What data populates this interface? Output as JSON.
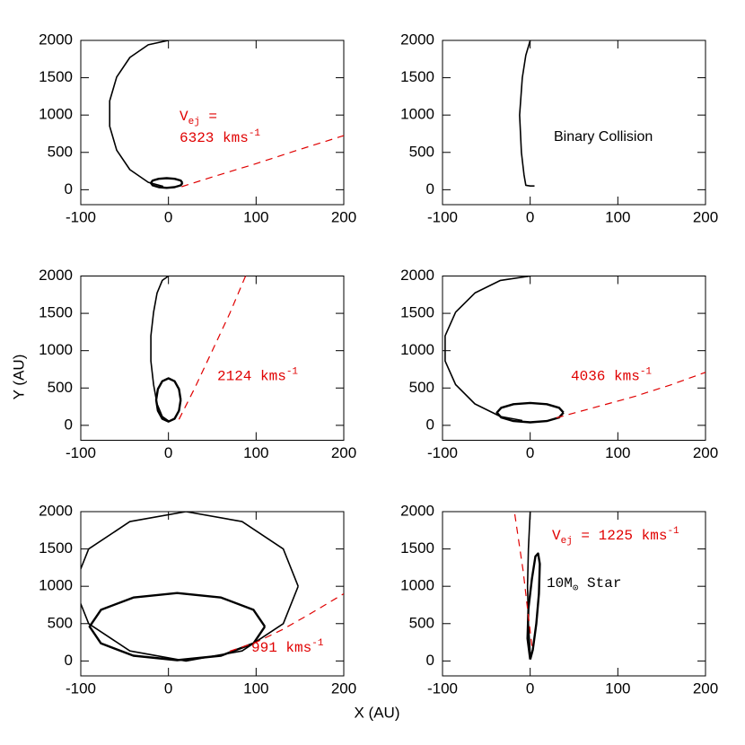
{
  "xlabel": "X (AU)",
  "ylabel": "Y (AU)",
  "chart_data": [
    {
      "type": "line",
      "xlim": [
        -100,
        200
      ],
      "ylim": [
        -200,
        2000
      ],
      "xticks": [
        -100,
        0,
        100,
        200
      ],
      "yticks": [
        0,
        500,
        1000,
        1500,
        2000
      ],
      "series": [
        {
          "color": "#000000",
          "linewidth": 1.6,
          "dash": false,
          "x": [
            0,
            -23,
            -44,
            -59,
            -67,
            -67,
            -59,
            -44,
            -23,
            -6
          ],
          "values": [
            2000,
            1941,
            1771,
            1510,
            1190,
            850,
            530,
            269,
            99,
            44
          ]
        },
        {
          "color": "#000000",
          "linewidth": 2.4,
          "dash": false,
          "x": [
            16,
            14,
            7,
            -2,
            -11,
            -18,
            -20,
            -18,
            -11,
            -2,
            7,
            14,
            16
          ],
          "values": [
            90,
            123,
            146,
            155,
            146,
            123,
            90,
            58,
            34,
            25,
            34,
            58,
            90
          ]
        },
        {
          "color": "#e00000",
          "linewidth": 1.2,
          "dash": true,
          "x": [
            15,
            50,
            100,
            150,
            200
          ],
          "values": [
            40,
            170,
            350,
            540,
            725
          ]
        }
      ],
      "annotations": [
        {
          "color": "#e00000",
          "lines": [
            [
              {
                "text": "V"
              },
              {
                "text": "ej",
                "sub": true
              },
              {
                "text": " ="
              }
            ],
            [
              {
                "text": "6323 kms"
              },
              {
                "text": "-1",
                "sup": true
              }
            ]
          ]
        }
      ]
    },
    {
      "type": "line",
      "xlim": [
        -100,
        200
      ],
      "ylim": [
        -200,
        2000
      ],
      "xticks": [
        -100,
        0,
        100,
        200
      ],
      "yticks": [
        0,
        500,
        1000,
        1500,
        2000
      ],
      "series": [
        {
          "color": "#000000",
          "linewidth": 1.6,
          "dash": false,
          "x": [
            0,
            -5,
            -9,
            -12,
            -10,
            -7,
            -5,
            0,
            5
          ],
          "values": [
            2000,
            1800,
            1500,
            1000,
            500,
            200,
            60,
            50,
            50
          ]
        }
      ],
      "annotations": [
        {
          "color": "#000000",
          "sans": true,
          "lines": [
            [
              {
                "text": "Binary Collision"
              }
            ]
          ]
        }
      ]
    },
    {
      "type": "line",
      "xlim": [
        -100,
        200
      ],
      "ylim": [
        -200,
        2000
      ],
      "xticks": [
        -100,
        0,
        100,
        200
      ],
      "yticks": [
        0,
        500,
        1000,
        1500,
        2000
      ],
      "series": [
        {
          "color": "#000000",
          "linewidth": 1.6,
          "dash": false,
          "x": [
            0,
            -7,
            -13,
            -17,
            -20,
            -20,
            -17,
            -13,
            -7,
            0
          ],
          "values": [
            2000,
            1941,
            1773,
            1515,
            1198,
            862,
            545,
            287,
            118,
            60
          ]
        },
        {
          "color": "#000000",
          "linewidth": 2.4,
          "dash": false,
          "x": [
            14,
            12,
            7,
            0,
            -7,
            -12,
            -14,
            -12,
            -7,
            0,
            7,
            12,
            14
          ],
          "values": [
            340,
            485,
            591,
            630,
            591,
            485,
            340,
            195,
            89,
            50,
            89,
            195,
            340
          ]
        },
        {
          "color": "#e00000",
          "linewidth": 1.2,
          "dash": true,
          "x": [
            12,
            30,
            50,
            70,
            88
          ],
          "values": [
            80,
            500,
            1000,
            1500,
            2000
          ]
        }
      ],
      "annotations": [
        {
          "color": "#e00000",
          "lines": [
            [
              {
                "text": "2124 kms"
              },
              {
                "text": "-1",
                "sup": true
              }
            ]
          ]
        }
      ]
    },
    {
      "type": "line",
      "xlim": [
        -100,
        200
      ],
      "ylim": [
        -200,
        2000
      ],
      "xticks": [
        -100,
        0,
        100,
        200
      ],
      "yticks": [
        0,
        500,
        1000,
        1500,
        2000
      ],
      "series": [
        {
          "color": "#000000",
          "linewidth": 1.6,
          "dash": false,
          "x": [
            0,
            -34,
            -63,
            -85,
            -97,
            -97,
            -85,
            -63,
            -34,
            -9
          ],
          "values": [
            2000,
            1941,
            1773,
            1515,
            1198,
            862,
            545,
            287,
            118,
            64
          ]
        },
        {
          "color": "#000000",
          "linewidth": 2.4,
          "dash": false,
          "x": [
            38,
            33,
            19,
            0,
            -19,
            -33,
            -38,
            -33,
            -19,
            0,
            19,
            33,
            38
          ],
          "values": [
            170,
            235,
            283,
            300,
            283,
            235,
            170,
            105,
            57,
            40,
            57,
            105,
            170
          ]
        },
        {
          "color": "#e00000",
          "linewidth": 1.2,
          "dash": true,
          "x": [
            30,
            80,
            120,
            160,
            200
          ],
          "values": [
            100,
            260,
            390,
            540,
            710
          ]
        }
      ],
      "annotations": [
        {
          "color": "#e00000",
          "lines": [
            [
              {
                "text": "4036 kms"
              },
              {
                "text": "-1",
                "sup": true
              }
            ]
          ]
        }
      ]
    },
    {
      "type": "line",
      "xlim": [
        -100,
        200
      ],
      "ylim": [
        -200,
        2000
      ],
      "xticks": [
        -100,
        0,
        100,
        200
      ],
      "yticks": [
        0,
        500,
        1000,
        1500,
        2000
      ],
      "series": [
        {
          "color": "#000000",
          "linewidth": 1.6,
          "dash": false,
          "x": [
            148,
            131,
            84,
            20,
            -44,
            -91,
            -108,
            -91,
            -44,
            20,
            84,
            131,
            148
          ],
          "values": [
            1000,
            1500,
            1866,
            2000,
            1866,
            1500,
            1000,
            500,
            134,
            0,
            134,
            500,
            1000
          ]
        },
        {
          "color": "#000000",
          "linewidth": 2.4,
          "dash": false,
          "x": [
            110,
            97,
            60,
            10,
            -40,
            -77,
            -90,
            -77,
            -40,
            10,
            60,
            97,
            110
          ],
          "values": [
            460,
            685,
            850,
            910,
            850,
            685,
            460,
            235,
            70,
            10,
            70,
            235,
            460
          ]
        },
        {
          "color": "#e00000",
          "linewidth": 1.2,
          "dash": true,
          "x": [
            70,
            100,
            130,
            160,
            200
          ],
          "values": [
            130,
            250,
            420,
            620,
            900
          ]
        }
      ],
      "annotations": [
        {
          "color": "#e00000",
          "lines": [
            [
              {
                "text": "991 kms"
              },
              {
                "text": "-1",
                "sup": true
              }
            ]
          ]
        }
      ]
    },
    {
      "type": "line",
      "xlim": [
        -100,
        200
      ],
      "ylim": [
        -200,
        2000
      ],
      "xticks": [
        -100,
        0,
        100,
        200
      ],
      "yticks": [
        0,
        500,
        1000,
        1500,
        2000
      ],
      "series": [
        {
          "color": "#000000",
          "linewidth": 1.6,
          "dash": false,
          "x": [
            0,
            -2,
            -3,
            -2,
            0
          ],
          "values": [
            2000,
            1500,
            1000,
            500,
            100
          ]
        },
        {
          "color": "#000000",
          "linewidth": 2.4,
          "dash": false,
          "x": [
            0,
            -3,
            -2,
            2,
            6,
            9,
            11,
            10,
            7,
            3,
            0
          ],
          "values": [
            20,
            300,
            700,
            1100,
            1400,
            1440,
            1300,
            900,
            500,
            150,
            20
          ]
        },
        {
          "color": "#e00000",
          "linewidth": 1.2,
          "dash": true,
          "x": [
            2,
            -3,
            -8,
            -13,
            -18
          ],
          "values": [
            200,
            700,
            1200,
            1600,
            2000
          ]
        }
      ],
      "annotations": [
        {
          "color": "#e00000",
          "lines": [
            [
              {
                "text": "V"
              },
              {
                "text": "ej",
                "sub": true
              },
              {
                "text": " = 1225 kms"
              },
              {
                "text": "-1",
                "sup": true
              }
            ]
          ]
        },
        {
          "color": "#000000",
          "lines": [
            [
              {
                "text": "10M"
              },
              {
                "text": "⊙",
                "sub": true
              },
              {
                "text": " Star"
              }
            ]
          ]
        }
      ]
    }
  ]
}
